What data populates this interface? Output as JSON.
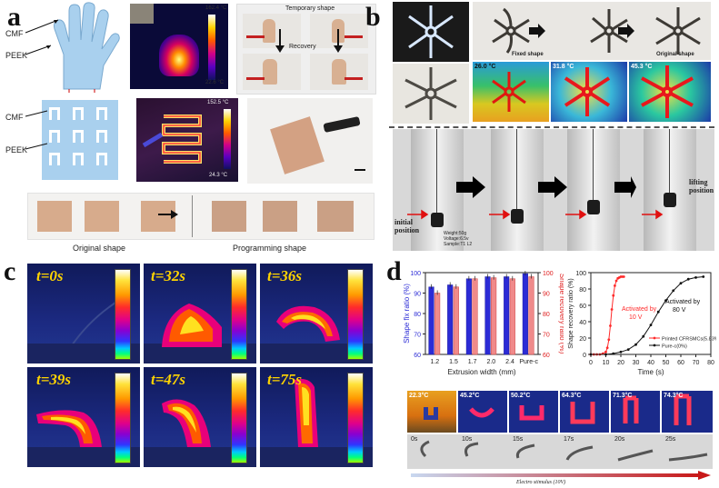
{
  "panels": {
    "a": {
      "letter": "a",
      "cmf_label": "CMF",
      "peek_label": "PEEK",
      "cmf_label2": "CMF",
      "peek_label2": "PEEK",
      "ir_hand_max": "162.4 °C",
      "ir_hand_min": "22.6 °C",
      "temp_shape_label": "Temporary shape",
      "recovery_label": "Recovery",
      "ir_grid_max": "152.5 °C",
      "ir_grid_min": "24.3 °C",
      "original_label": "Original shape",
      "programming_label": "Programming shape"
    },
    "b": {
      "letter": "b",
      "fixed_shape": "Fixed shape",
      "original_shape": "Original shape",
      "temps": [
        "26.0 °C",
        "31.8 °C",
        "45.3 °C"
      ],
      "initial_position": "initial\nposition",
      "lifting_position": "lifting\nposition",
      "specs": [
        "Weight:50g",
        "Voltage:6.5v",
        "Sample:T1 L2"
      ]
    },
    "c": {
      "letter": "c",
      "times": [
        "t=0s",
        "t=32s",
        "t=36s",
        "t=39s",
        "t=47s",
        "t=75s"
      ]
    },
    "d": {
      "letter": "d",
      "thermal_temps": [
        "22.3°C",
        "45.2°C",
        "50.2°C",
        "64.3°C",
        "71.3°C",
        "74.3°C"
      ],
      "photo_times": [
        "0s",
        "10s",
        "15s",
        "17s",
        "20s",
        "25s"
      ],
      "stimulus_label": "Electro stimulus (10V)"
    }
  },
  "chart_data": [
    {
      "type": "bar",
      "categories": [
        "1.2",
        "1.5",
        "1.7",
        "2.0",
        "2.4",
        "Pure-c"
      ],
      "series": [
        {
          "name": "Shape fix ratio (%)",
          "values": [
            93,
            94,
            97,
            98,
            98,
            99.5
          ],
          "color": "#2b2bd6"
        },
        {
          "name": "Shape recovery ratio (%)",
          "values": [
            90,
            93,
            97,
            97.5,
            97,
            98
          ],
          "color": "#f08a8a"
        }
      ],
      "xlabel": "Extrusion width (mm)",
      "ylabel": "Shape fix ratio (%)",
      "ylabel_right": "Shape recovery ratio (%)",
      "ylim": [
        60,
        100
      ],
      "yticks": [
        60,
        70,
        80,
        90,
        100
      ],
      "yticks_right": [
        60,
        70,
        80,
        90,
        100
      ]
    },
    {
      "type": "line",
      "series": [
        {
          "name": "Printed CFRSMCs(5.83%)",
          "color": "#ff2a2a",
          "x": [
            0,
            2,
            4,
            6,
            8,
            10,
            11,
            12,
            13,
            14,
            15,
            16,
            17,
            18,
            19,
            20,
            21,
            22
          ],
          "y": [
            0,
            0,
            0,
            0,
            1,
            3,
            8,
            18,
            35,
            55,
            72,
            84,
            90,
            93,
            94,
            95,
            95,
            95
          ]
        },
        {
          "name": "Pure-c(0%)",
          "color": "#111111",
          "x": [
            0,
            10,
            15,
            20,
            25,
            30,
            35,
            40,
            45,
            50,
            55,
            60,
            65,
            70,
            75
          ],
          "y": [
            0,
            0,
            1,
            3,
            6,
            12,
            22,
            36,
            52,
            66,
            78,
            87,
            92,
            94,
            95
          ]
        }
      ],
      "annotations": [
        "Activated by\n10 V",
        "Activated by\n80 V"
      ],
      "xlabel": "Time (s)",
      "ylabel": "Shape recovery ratio (%)",
      "xlim": [
        0,
        80
      ],
      "ylim": [
        0,
        100
      ],
      "xticks": [
        0,
        10,
        20,
        30,
        40,
        50,
        60,
        70,
        80
      ],
      "yticks": [
        0,
        20,
        40,
        60,
        80,
        100
      ]
    }
  ]
}
